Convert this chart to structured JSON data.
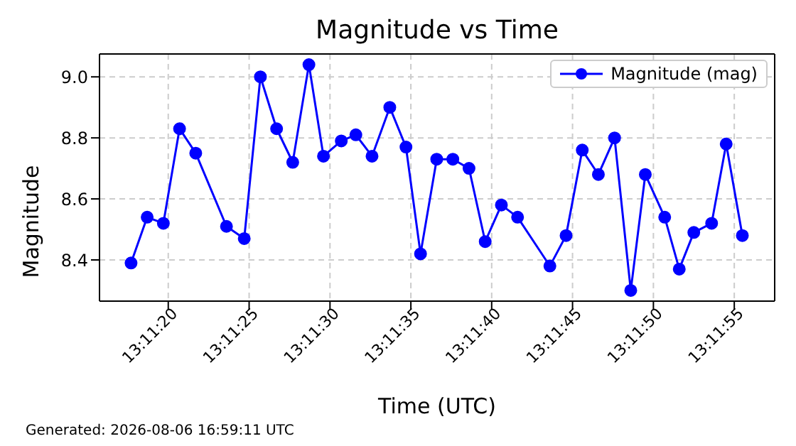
{
  "chart_data": {
    "type": "line",
    "title": "Magnitude vs Time",
    "xlabel": "Time (UTC)",
    "ylabel": "Magnitude",
    "annotations": [
      "Generated: 2026-08-06 16:59:11 UTC"
    ],
    "x": [
      13.18825,
      13.188527,
      13.188805,
      13.189083,
      13.189361,
      13.189889,
      13.190194,
      13.190472,
      13.19075,
      13.191027,
      13.191305,
      13.191555,
      13.191861,
      13.192111,
      13.192389,
      13.192694,
      13.192972,
      13.193222,
      13.1935,
      13.193777,
      13.194055,
      13.194333,
      13.194611,
      13.194889,
      13.195444,
      13.195722,
      13.196,
      13.196277,
      13.196555,
      13.196833,
      13.197083,
      13.197416,
      13.197666,
      13.197916,
      13.198222,
      13.198472,
      13.19875
    ],
    "series": [
      {
        "name": "Magnitude (mag)",
        "color": "#0000ff",
        "values": [
          8.39,
          8.54,
          8.52,
          8.83,
          8.75,
          8.51,
          8.47,
          9.0,
          8.83,
          8.72,
          9.04,
          8.74,
          8.79,
          8.81,
          8.74,
          8.9,
          8.77,
          8.42,
          8.73,
          8.73,
          8.7,
          8.46,
          8.58,
          8.54,
          8.38,
          8.48,
          8.76,
          8.68,
          8.8,
          8.3,
          8.68,
          8.54,
          8.37,
          8.49,
          8.52,
          8.78,
          8.48
        ]
      }
    ],
    "xlim": [
      13.187708,
      13.199305
    ],
    "xticks": [
      {
        "value": 13.188889,
        "label": "13:11:20"
      },
      {
        "value": 13.190278,
        "label": "13:11:25"
      },
      {
        "value": 13.191667,
        "label": "13:11:30"
      },
      {
        "value": 13.193056,
        "label": "13:11:35"
      },
      {
        "value": 13.194444,
        "label": "13:11:40"
      },
      {
        "value": 13.195833,
        "label": "13:11:45"
      },
      {
        "value": 13.197222,
        "label": "13:11:50"
      },
      {
        "value": 13.198611,
        "label": "13:11:55"
      }
    ],
    "ylim": [
      8.265,
      9.075
    ],
    "yticks": [
      {
        "value": 8.4,
        "label": "8.4"
      },
      {
        "value": 8.6,
        "label": "8.6"
      },
      {
        "value": 8.8,
        "label": "8.8"
      },
      {
        "value": 9.0,
        "label": "9.0"
      }
    ],
    "grid": true,
    "legend": "top right",
    "marker": "circle",
    "line_style": "solid"
  }
}
